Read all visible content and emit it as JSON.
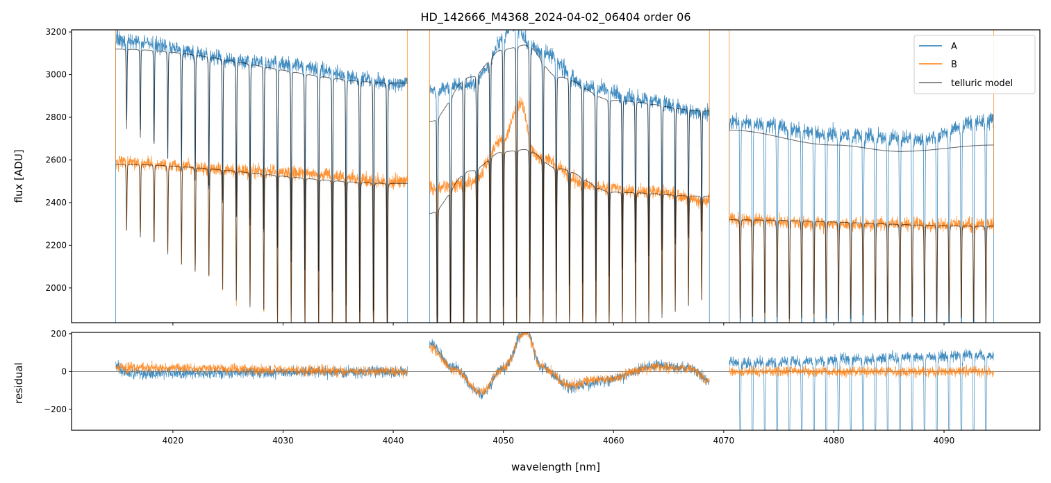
{
  "chart_data": [
    {
      "type": "line",
      "title": "HD_142666_M4368_2024-04-02_06404  order 06",
      "xlabel": "",
      "ylabel": "flux [ADU]",
      "xlim": [
        4010.8,
        4098.7
      ],
      "ylim": [
        1837,
        3210
      ],
      "yticks": [
        "2000",
        "2200",
        "2400",
        "2600",
        "2800",
        "3000",
        "3200"
      ],
      "legend": {
        "placement": "top-right",
        "entries": [
          "A",
          "B",
          "telluric model"
        ]
      },
      "colors": {
        "A": "#1f77b4",
        "B": "#ff7f0e",
        "telluric model": "#444444"
      },
      "segments": [
        {
          "x_range": [
            4014.8,
            4041.3
          ],
          "A_continuum": [
            [
              4014.8,
              3160
            ],
            [
              4028,
              3060
            ],
            [
              4041.3,
              2960
            ]
          ],
          "B_continuum": [
            [
              4014.8,
              2590
            ],
            [
              4028,
              2550
            ],
            [
              4041.3,
              2500
            ]
          ],
          "model_A": [
            [
              4014.8,
              3120
            ],
            [
              4041.3,
              2960
            ]
          ],
          "model_B": [
            [
              4014.8,
              2580
            ],
            [
              4041.3,
              2490
            ]
          ],
          "lines": {
            "start": 4015.8,
            "step": 1.245,
            "count": 20,
            "depth": [
              0.12,
              0.4
            ]
          }
        },
        {
          "x_range": [
            4043.3,
            4068.7
          ],
          "A_continuum": [
            [
              4043.3,
              2930
            ],
            [
              4047,
              2960
            ],
            [
              4051,
              3220
            ],
            [
              4053,
              3120
            ],
            [
              4058,
              2940
            ],
            [
              4062,
              2890
            ],
            [
              4068.7,
              2820
            ]
          ],
          "B_continuum": [
            [
              4043.3,
              2470
            ],
            [
              4047,
              2490
            ],
            [
              4050,
              2700
            ],
            [
              4051.5,
              2870
            ],
            [
              4053,
              2620
            ],
            [
              4058,
              2480
            ],
            [
              4064,
              2450
            ],
            [
              4068.7,
              2410
            ]
          ],
          "model_A": [
            [
              4043.3,
              2780
            ],
            [
              4047,
              2990
            ],
            [
              4050,
              3120
            ],
            [
              4052,
              3140
            ],
            [
              4055,
              2990
            ],
            [
              4060,
              2880
            ],
            [
              4068.7,
              2830
            ]
          ],
          "model_B": [
            [
              4043.3,
              2350
            ],
            [
              4047,
              2550
            ],
            [
              4050,
              2640
            ],
            [
              4052,
              2650
            ],
            [
              4055,
              2560
            ],
            [
              4060,
              2450
            ],
            [
              4068.7,
              2430
            ]
          ],
          "lines": {
            "start": 4044.0,
            "step": 1.2,
            "count": 21,
            "depth": [
              0.45,
              0.2
            ]
          }
        },
        {
          "x_range": [
            4070.5,
            4094.5
          ],
          "A_continuum": [
            [
              4070.5,
              2780
            ],
            [
              4082,
              2720
            ],
            [
              4087,
              2700
            ],
            [
              4094.5,
              2790
            ]
          ],
          "B_continuum": [
            [
              4070.5,
              2320
            ],
            [
              4082,
              2300
            ],
            [
              4094.5,
              2300
            ]
          ],
          "model_A": [
            [
              4070.5,
              2740
            ],
            [
              4080,
              2670
            ],
            [
              4086,
              2640
            ],
            [
              4094.5,
              2670
            ]
          ],
          "model_B": [
            [
              4070.5,
              2320
            ],
            [
              4094.5,
              2290
            ]
          ],
          "lines": {
            "start": 4071.5,
            "step": 1.115,
            "count": 21,
            "depth": [
              0.2,
              0.2
            ]
          }
        }
      ]
    },
    {
      "type": "line",
      "title": "",
      "xlabel": "wavelength [nm]",
      "ylabel": "residual",
      "xlim": [
        4010.8,
        4098.7
      ],
      "ylim": [
        -311,
        207
      ],
      "xticks": [
        "4020",
        "4030",
        "4040",
        "4050",
        "4060",
        "4070",
        "4080",
        "4090"
      ],
      "yticks": [
        "−200",
        "0",
        "200"
      ],
      "residual_trend": [
        {
          "x_range": [
            4014.8,
            4041.3
          ],
          "A": [
            [
              4014.8,
              30
            ],
            [
              4016,
              -10
            ],
            [
              4041.3,
              0
            ]
          ],
          "B": [
            [
              4014.8,
              20
            ],
            [
              4041.3,
              0
            ]
          ]
        },
        {
          "x_range": [
            4043.3,
            4068.7
          ],
          "A": [
            [
              4043.3,
              150
            ],
            [
              4045.5,
              20
            ],
            [
              4048,
              -120
            ],
            [
              4050,
              20
            ],
            [
              4052,
              220
            ],
            [
              4053.5,
              20
            ],
            [
              4056,
              -80
            ],
            [
              4059,
              -50
            ],
            [
              4064,
              30
            ],
            [
              4067,
              20
            ],
            [
              4068.7,
              -50
            ]
          ],
          "B": [
            [
              4043.3,
              130
            ],
            [
              4045.5,
              10
            ],
            [
              4048,
              -110
            ],
            [
              4050,
              20
            ],
            [
              4052,
              210
            ],
            [
              4053.5,
              20
            ],
            [
              4056,
              -70
            ],
            [
              4059,
              -40
            ],
            [
              4064,
              25
            ],
            [
              4067,
              15
            ],
            [
              4068.7,
              -50
            ]
          ]
        },
        {
          "x_range": [
            4070.5,
            4094.5
          ],
          "A": [
            [
              4070.5,
              50
            ],
            [
              4094.5,
              90
            ]
          ],
          "B": [
            [
              4070.5,
              0
            ],
            [
              4094.5,
              0
            ]
          ]
        }
      ]
    }
  ]
}
